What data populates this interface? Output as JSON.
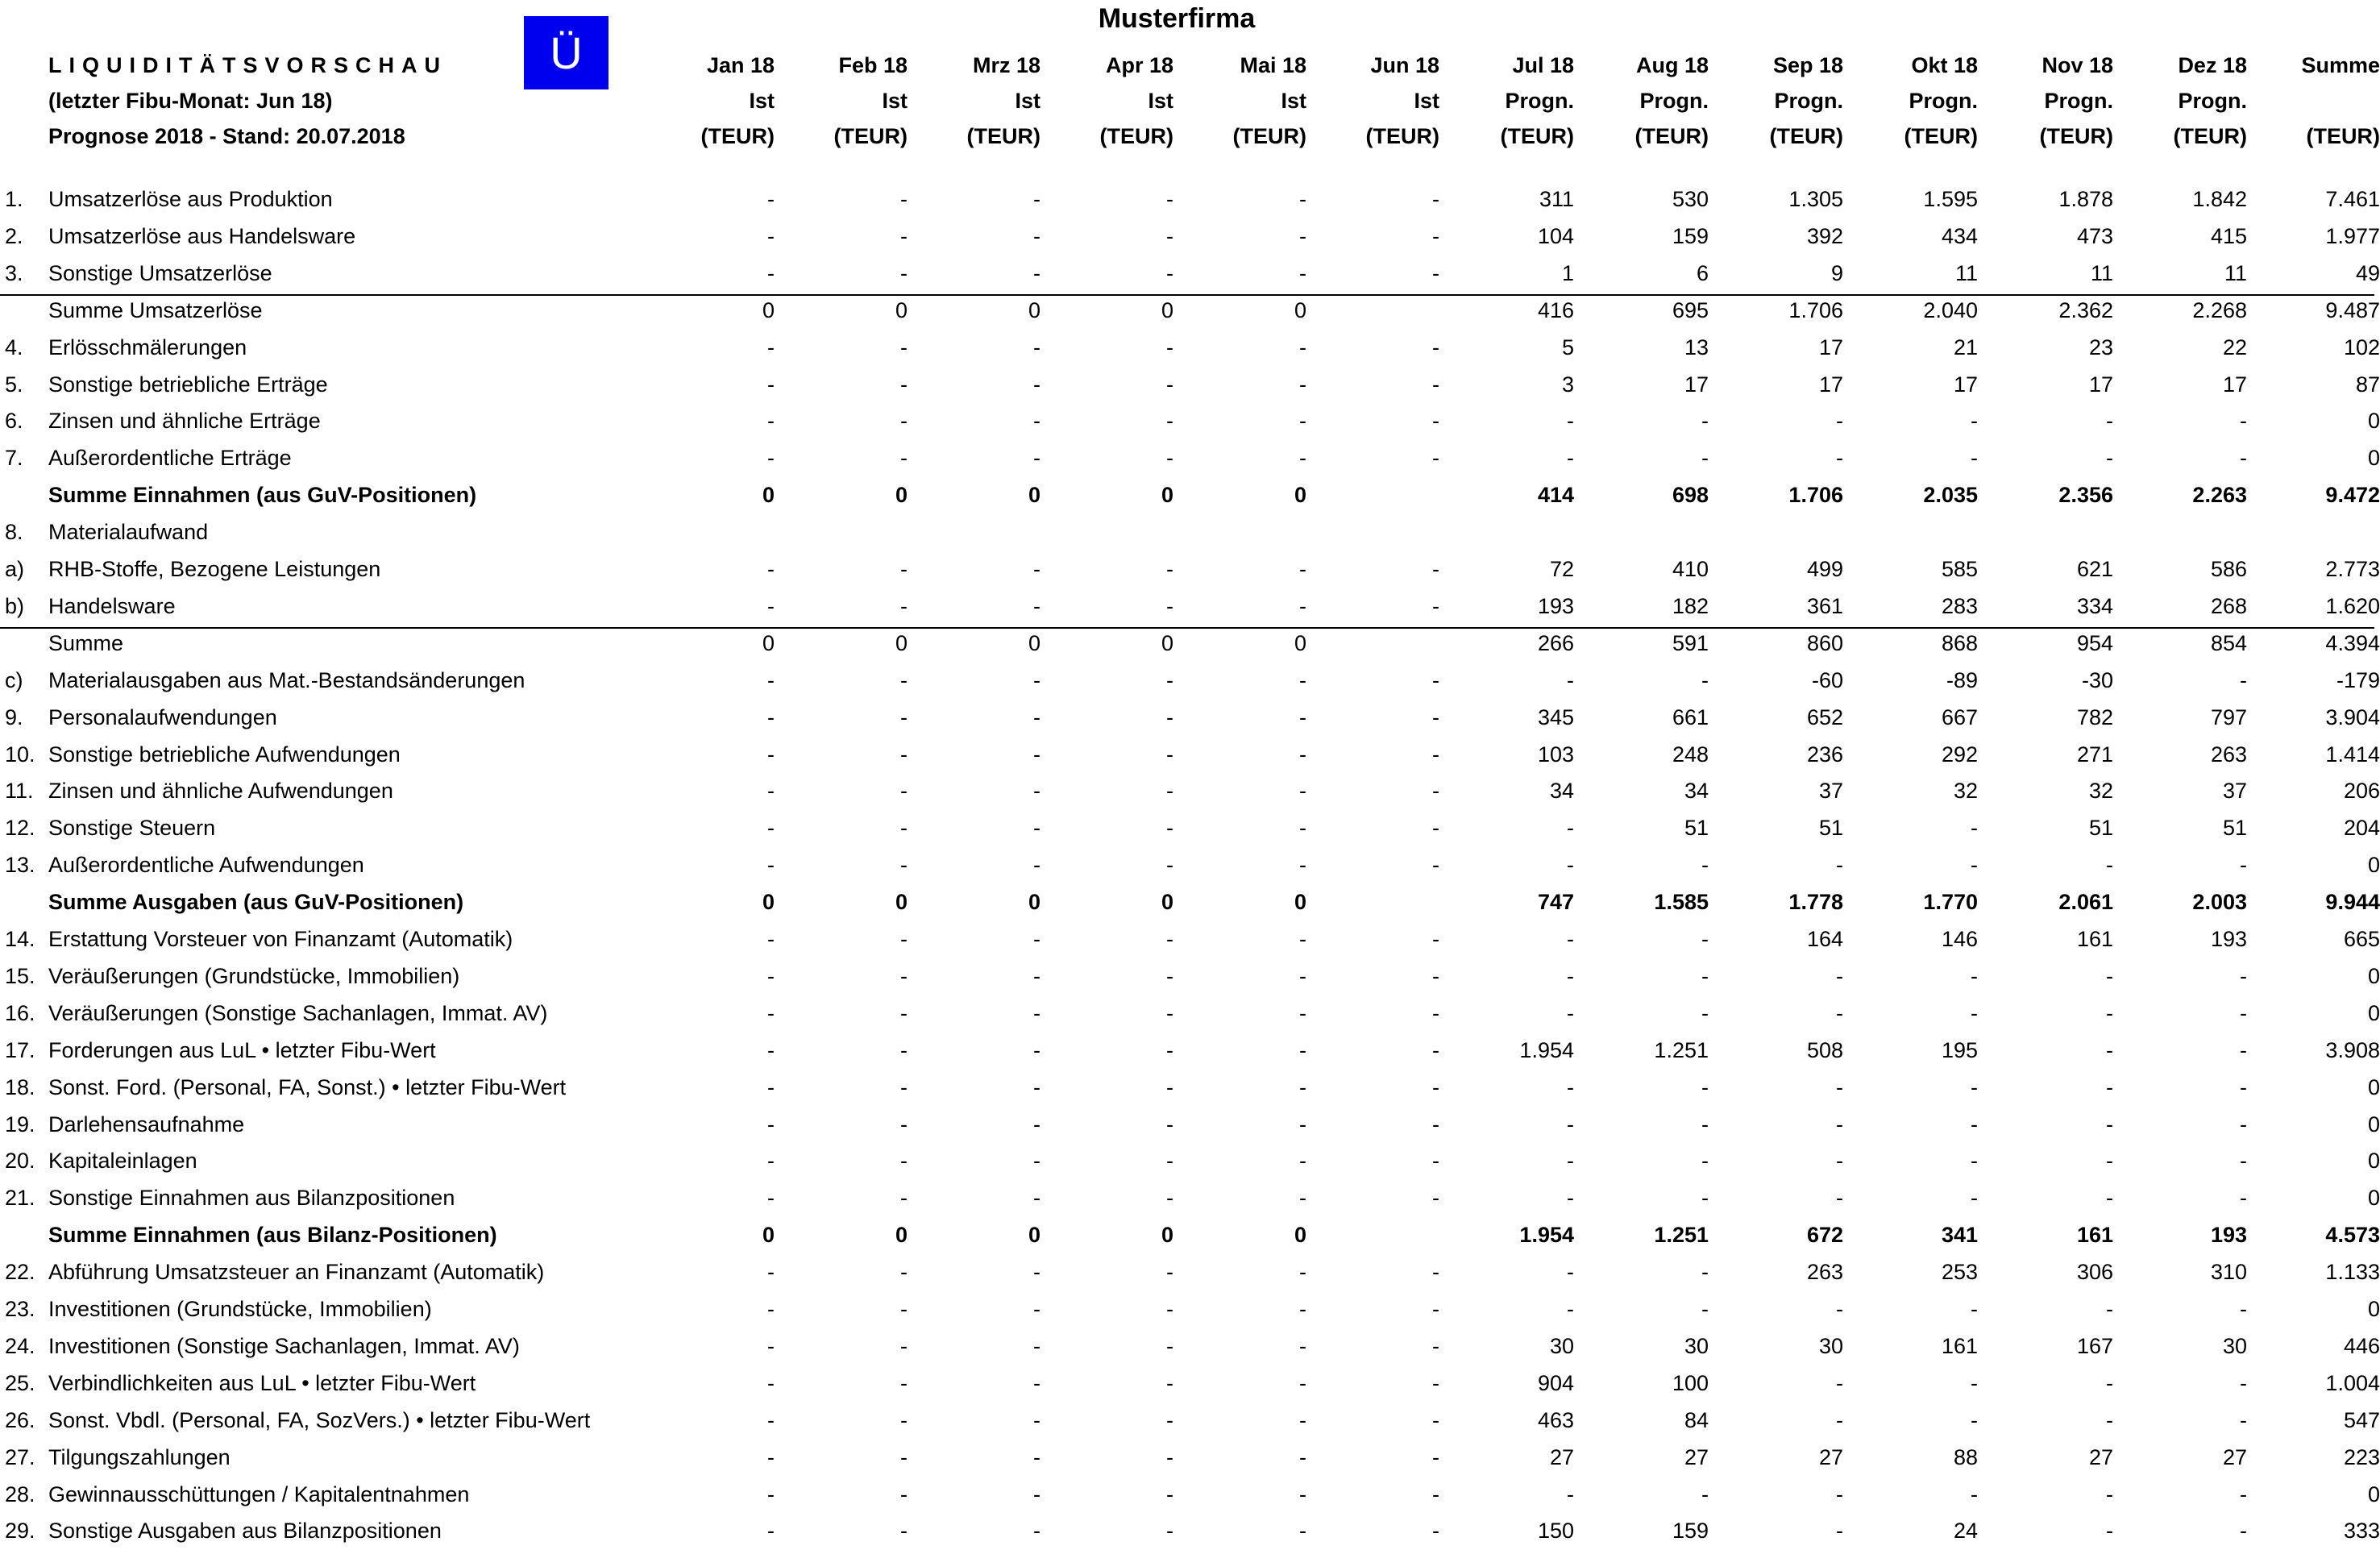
{
  "company": "Musterfirma",
  "badge": "Ü",
  "header": {
    "title": "LIQUIDITÄTSVORSCHAU",
    "subtitle": "(letzter Fibu-Monat: Jun 18)",
    "forecast_line": "Prognose 2018 - Stand: 20.07.2018"
  },
  "columns": [
    {
      "month": "Jan 18",
      "type": "Ist",
      "unit": "(TEUR)"
    },
    {
      "month": "Feb 18",
      "type": "Ist",
      "unit": "(TEUR)"
    },
    {
      "month": "Mrz 18",
      "type": "Ist",
      "unit": "(TEUR)"
    },
    {
      "month": "Apr 18",
      "type": "Ist",
      "unit": "(TEUR)"
    },
    {
      "month": "Mai 18",
      "type": "Ist",
      "unit": "(TEUR)"
    },
    {
      "month": "Jun 18",
      "type": "Ist",
      "unit": "(TEUR)"
    },
    {
      "month": "Jul 18",
      "type": "Progn.",
      "unit": "(TEUR)"
    },
    {
      "month": "Aug 18",
      "type": "Progn.",
      "unit": "(TEUR)"
    },
    {
      "month": "Sep 18",
      "type": "Progn.",
      "unit": "(TEUR)"
    },
    {
      "month": "Okt 18",
      "type": "Progn.",
      "unit": "(TEUR)"
    },
    {
      "month": "Nov 18",
      "type": "Progn.",
      "unit": "(TEUR)"
    },
    {
      "month": "Dez 18",
      "type": "Progn.",
      "unit": "(TEUR)"
    },
    {
      "month": "Summe",
      "type": "",
      "unit": "(TEUR)"
    }
  ],
  "rows": [
    {
      "num": "1.",
      "label": "Umsatzerlöse aus Produktion",
      "bold": false,
      "values": [
        "-",
        "-",
        "-",
        "-",
        "-",
        "-",
        "311",
        "530",
        "1.305",
        "1.595",
        "1.878",
        "1.842",
        "7.461"
      ]
    },
    {
      "num": "2.",
      "label": "Umsatzerlöse aus Handelsware",
      "bold": false,
      "values": [
        "-",
        "-",
        "-",
        "-",
        "-",
        "-",
        "104",
        "159",
        "392",
        "434",
        "473",
        "415",
        "1.977"
      ]
    },
    {
      "num": "3.",
      "label": "Sonstige Umsatzerlöse",
      "bold": false,
      "values": [
        "-",
        "-",
        "-",
        "-",
        "-",
        "-",
        "1",
        "6",
        "9",
        "11",
        "11",
        "11",
        "49"
      ]
    },
    {
      "num": "",
      "label": "Summe Umsatzerlöse",
      "bold": false,
      "rule_above": true,
      "values": [
        "0",
        "0",
        "0",
        "0",
        "0",
        "",
        "416",
        "695",
        "1.706",
        "2.040",
        "2.362",
        "2.268",
        "9.487"
      ]
    },
    {
      "num": "4.",
      "label": "Erlösschmälerungen",
      "bold": false,
      "values": [
        "-",
        "-",
        "-",
        "-",
        "-",
        "-",
        "5",
        "13",
        "17",
        "21",
        "23",
        "22",
        "102"
      ]
    },
    {
      "num": "5.",
      "label": "Sonstige betriebliche Erträge",
      "bold": false,
      "values": [
        "-",
        "-",
        "-",
        "-",
        "-",
        "-",
        "3",
        "17",
        "17",
        "17",
        "17",
        "17",
        "87"
      ]
    },
    {
      "num": "6.",
      "label": "Zinsen und ähnliche Erträge",
      "bold": false,
      "values": [
        "-",
        "-",
        "-",
        "-",
        "-",
        "-",
        "-",
        "-",
        "-",
        "-",
        "-",
        "-",
        "0"
      ]
    },
    {
      "num": "7.",
      "label": "Außerordentliche Erträge",
      "bold": false,
      "values": [
        "-",
        "-",
        "-",
        "-",
        "-",
        "-",
        "-",
        "-",
        "-",
        "-",
        "-",
        "-",
        "0"
      ]
    },
    {
      "num": "",
      "label": "Summe Einnahmen (aus GuV-Positionen)",
      "bold": true,
      "values": [
        "0",
        "0",
        "0",
        "0",
        "0",
        "",
        "414",
        "698",
        "1.706",
        "2.035",
        "2.356",
        "2.263",
        "9.472"
      ]
    },
    {
      "num": "8.",
      "label": "Materialaufwand",
      "bold": false,
      "values": [
        "",
        "",
        "",
        "",
        "",
        "",
        "",
        "",
        "",
        "",
        "",
        "",
        ""
      ]
    },
    {
      "num": "a)",
      "label": "RHB-Stoffe, Bezogene Leistungen",
      "bold": false,
      "values": [
        "-",
        "-",
        "-",
        "-",
        "-",
        "-",
        "72",
        "410",
        "499",
        "585",
        "621",
        "586",
        "2.773"
      ]
    },
    {
      "num": "b)",
      "label": "Handelsware",
      "bold": false,
      "values": [
        "-",
        "-",
        "-",
        "-",
        "-",
        "-",
        "193",
        "182",
        "361",
        "283",
        "334",
        "268",
        "1.620"
      ]
    },
    {
      "num": "",
      "label": "Summe",
      "bold": false,
      "rule_above": true,
      "values": [
        "0",
        "0",
        "0",
        "0",
        "0",
        "",
        "266",
        "591",
        "860",
        "868",
        "954",
        "854",
        "4.394"
      ]
    },
    {
      "num": "c)",
      "label": "Materialausgaben aus Mat.-Bestandsänderungen",
      "bold": false,
      "values": [
        "-",
        "-",
        "-",
        "-",
        "-",
        "-",
        "-",
        "-",
        "-60",
        "-89",
        "-30",
        "-",
        "-179"
      ]
    },
    {
      "num": "9.",
      "label": "Personalaufwendungen",
      "bold": false,
      "values": [
        "-",
        "-",
        "-",
        "-",
        "-",
        "-",
        "345",
        "661",
        "652",
        "667",
        "782",
        "797",
        "3.904"
      ]
    },
    {
      "num": "10.",
      "label": "Sonstige betriebliche Aufwendungen",
      "bold": false,
      "values": [
        "-",
        "-",
        "-",
        "-",
        "-",
        "-",
        "103",
        "248",
        "236",
        "292",
        "271",
        "263",
        "1.414"
      ]
    },
    {
      "num": "11.",
      "label": "Zinsen und ähnliche Aufwendungen",
      "bold": false,
      "values": [
        "-",
        "-",
        "-",
        "-",
        "-",
        "-",
        "34",
        "34",
        "37",
        "32",
        "32",
        "37",
        "206"
      ]
    },
    {
      "num": "12.",
      "label": "Sonstige Steuern",
      "bold": false,
      "values": [
        "-",
        "-",
        "-",
        "-",
        "-",
        "-",
        "-",
        "51",
        "51",
        "-",
        "51",
        "51",
        "204"
      ]
    },
    {
      "num": "13.",
      "label": "Außerordentliche Aufwendungen",
      "bold": false,
      "values": [
        "-",
        "-",
        "-",
        "-",
        "-",
        "-",
        "-",
        "-",
        "-",
        "-",
        "-",
        "-",
        "0"
      ]
    },
    {
      "num": "",
      "label": "Summe Ausgaben (aus GuV-Positionen)",
      "bold": true,
      "values": [
        "0",
        "0",
        "0",
        "0",
        "0",
        "",
        "747",
        "1.585",
        "1.778",
        "1.770",
        "2.061",
        "2.003",
        "9.944"
      ]
    },
    {
      "num": "14.",
      "label": "Erstattung Vorsteuer von Finanzamt (Automatik)",
      "bold": false,
      "values": [
        "-",
        "-",
        "-",
        "-",
        "-",
        "-",
        "-",
        "-",
        "164",
        "146",
        "161",
        "193",
        "665"
      ]
    },
    {
      "num": "15.",
      "label": "Veräußerungen (Grundstücke, Immobilien)",
      "bold": false,
      "values": [
        "-",
        "-",
        "-",
        "-",
        "-",
        "-",
        "-",
        "-",
        "-",
        "-",
        "-",
        "-",
        "0"
      ]
    },
    {
      "num": "16.",
      "label": "Veräußerungen (Sonstige Sachanlagen, Immat. AV)",
      "bold": false,
      "values": [
        "-",
        "-",
        "-",
        "-",
        "-",
        "-",
        "-",
        "-",
        "-",
        "-",
        "-",
        "-",
        "0"
      ]
    },
    {
      "num": "17.",
      "label": "Forderungen aus LuL • letzter Fibu-Wert",
      "bold": false,
      "values": [
        "-",
        "-",
        "-",
        "-",
        "-",
        "-",
        "1.954",
        "1.251",
        "508",
        "195",
        "-",
        "-",
        "3.908"
      ]
    },
    {
      "num": "18.",
      "label": "Sonst. Ford. (Personal, FA, Sonst.) • letzter Fibu-Wert",
      "bold": false,
      "values": [
        "-",
        "-",
        "-",
        "-",
        "-",
        "-",
        "-",
        "-",
        "-",
        "-",
        "-",
        "-",
        "0"
      ]
    },
    {
      "num": "19.",
      "label": "Darlehensaufnahme",
      "bold": false,
      "values": [
        "-",
        "-",
        "-",
        "-",
        "-",
        "-",
        "-",
        "-",
        "-",
        "-",
        "-",
        "-",
        "0"
      ]
    },
    {
      "num": "20.",
      "label": "Kapitaleinlagen",
      "bold": false,
      "values": [
        "-",
        "-",
        "-",
        "-",
        "-",
        "-",
        "-",
        "-",
        "-",
        "-",
        "-",
        "-",
        "0"
      ]
    },
    {
      "num": "21.",
      "label": "Sonstige Einnahmen aus Bilanzpositionen",
      "bold": false,
      "values": [
        "-",
        "-",
        "-",
        "-",
        "-",
        "-",
        "-",
        "-",
        "-",
        "-",
        "-",
        "-",
        "0"
      ]
    },
    {
      "num": "",
      "label": "Summe Einnahmen (aus Bilanz-Positionen)",
      "bold": true,
      "values": [
        "0",
        "0",
        "0",
        "0",
        "0",
        "",
        "1.954",
        "1.251",
        "672",
        "341",
        "161",
        "193",
        "4.573"
      ]
    },
    {
      "num": "22.",
      "label": "Abführung Umsatzsteuer an Finanzamt (Automatik)",
      "bold": false,
      "values": [
        "-",
        "-",
        "-",
        "-",
        "-",
        "-",
        "-",
        "-",
        "263",
        "253",
        "306",
        "310",
        "1.133"
      ]
    },
    {
      "num": "23.",
      "label": "Investitionen (Grundstücke, Immobilien)",
      "bold": false,
      "values": [
        "-",
        "-",
        "-",
        "-",
        "-",
        "-",
        "-",
        "-",
        "-",
        "-",
        "-",
        "-",
        "0"
      ]
    },
    {
      "num": "24.",
      "label": "Investitionen (Sonstige Sachanlagen, Immat. AV)",
      "bold": false,
      "values": [
        "-",
        "-",
        "-",
        "-",
        "-",
        "-",
        "30",
        "30",
        "30",
        "161",
        "167",
        "30",
        "446"
      ]
    },
    {
      "num": "25.",
      "label": "Verbindlichkeiten aus LuL • letzter Fibu-Wert",
      "bold": false,
      "values": [
        "-",
        "-",
        "-",
        "-",
        "-",
        "-",
        "904",
        "100",
        "-",
        "-",
        "-",
        "-",
        "1.004"
      ]
    },
    {
      "num": "26.",
      "label": "Sonst. Vbdl. (Personal, FA, SozVers.) • letzter Fibu-Wert",
      "bold": false,
      "values": [
        "-",
        "-",
        "-",
        "-",
        "-",
        "-",
        "463",
        "84",
        "-",
        "-",
        "-",
        "-",
        "547"
      ]
    },
    {
      "num": "27.",
      "label": "Tilgungszahlungen",
      "bold": false,
      "values": [
        "-",
        "-",
        "-",
        "-",
        "-",
        "-",
        "27",
        "27",
        "27",
        "88",
        "27",
        "27",
        "223"
      ]
    },
    {
      "num": "28.",
      "label": "Gewinnausschüttungen / Kapitalentnahmen",
      "bold": false,
      "values": [
        "-",
        "-",
        "-",
        "-",
        "-",
        "-",
        "-",
        "-",
        "-",
        "-",
        "-",
        "-",
        "0"
      ]
    },
    {
      "num": "29.",
      "label": "Sonstige Ausgaben aus Bilanzpositionen",
      "bold": false,
      "values": [
        "-",
        "-",
        "-",
        "-",
        "-",
        "-",
        "150",
        "159",
        "-",
        "24",
        "-",
        "-",
        "333"
      ]
    }
  ]
}
